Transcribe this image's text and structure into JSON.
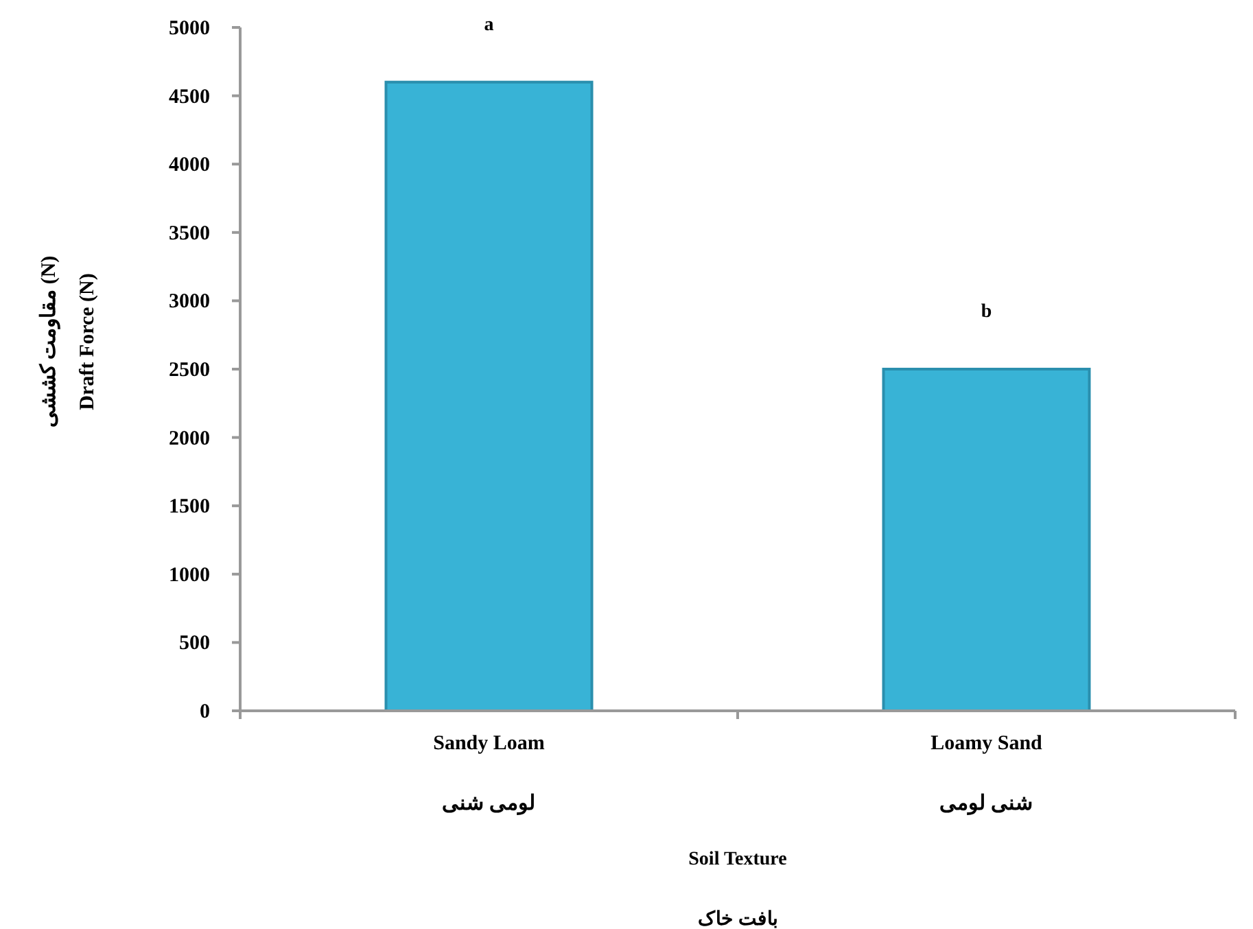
{
  "chart_data": {
    "type": "bar",
    "categories": [
      "Sandy Loam\nلومی شنی",
      "Loamy Sand\nشنی لومی"
    ],
    "values": [
      4600,
      2500
    ],
    "color": "#38b3d6",
    "xlabel": "Soil Texture\nبافت خاک",
    "ylabel": "مقاومت کششی (N)\nDraft  Force (N)",
    "ylim": [
      0,
      5000
    ],
    "yticks": [
      0,
      500,
      1000,
      1500,
      2000,
      2500,
      3000,
      3500,
      4000,
      4500,
      5000
    ],
    "annotations": [
      "a",
      "b"
    ],
    "grid": false
  }
}
